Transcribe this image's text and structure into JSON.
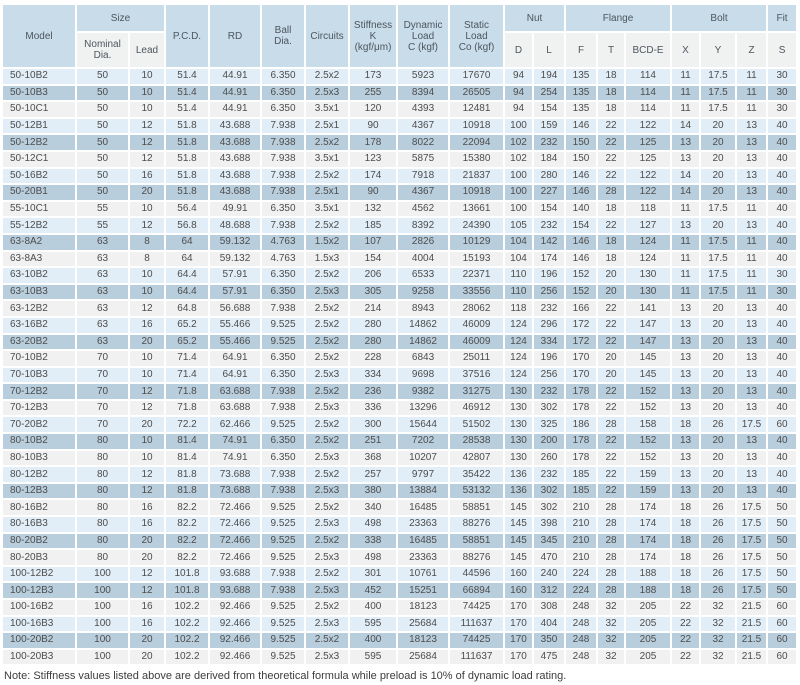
{
  "colors": {
    "header_bg": "#c8dce9",
    "subheader_bg": "#f0f1f1",
    "row_blue_light": "#e2eef7",
    "row_blue_medium": "#b9cedd",
    "row_gray": "#f1f1f1"
  },
  "table": {
    "header": {
      "model": "Model",
      "size": "Size",
      "nominal_dia": "Nominal\nDia.",
      "lead": "Lead",
      "pcd": "P.C.D.",
      "rd": "RD",
      "ball_dia": "Ball\nDia.",
      "circuits": "Circuits",
      "stiffness": "Stiffness\nK\n(kgf/μm)",
      "dynamic_load": "Dynamic\nLoad\nC (kgf)",
      "static_load": "Static\nLoad\nCo (kgf)",
      "nut": "Nut",
      "d": "D",
      "l": "L",
      "flange": "Flange",
      "f": "F",
      "t": "T",
      "bcde": "BCD-E",
      "bolt": "Bolt",
      "x": "X",
      "y": "Y",
      "z": "Z",
      "fit": "Fit",
      "s": "S"
    },
    "rows": [
      [
        "50-10B2",
        "50",
        "10",
        "51.4",
        "44.91",
        "6.350",
        "2.5x2",
        "173",
        "5923",
        "17670",
        "94",
        "194",
        "135",
        "18",
        "114",
        "11",
        "17.5",
        "11",
        "30"
      ],
      [
        "50-10B3",
        "50",
        "10",
        "51.4",
        "44.91",
        "6.350",
        "2.5x3",
        "255",
        "8394",
        "26505",
        "94",
        "254",
        "135",
        "18",
        "114",
        "11",
        "17.5",
        "11",
        "30"
      ],
      [
        "50-10C1",
        "50",
        "10",
        "51.4",
        "44.91",
        "6.350",
        "3.5x1",
        "120",
        "4393",
        "12481",
        "94",
        "154",
        "135",
        "18",
        "114",
        "11",
        "17.5",
        "11",
        "30"
      ],
      [
        "50-12B1",
        "50",
        "12",
        "51.8",
        "43.688",
        "7.938",
        "2.5x1",
        "90",
        "4367",
        "10918",
        "100",
        "159",
        "146",
        "22",
        "122",
        "14",
        "20",
        "13",
        "40"
      ],
      [
        "50-12B2",
        "50",
        "12",
        "51.8",
        "43.688",
        "7.938",
        "2.5x2",
        "178",
        "8022",
        "22094",
        "102",
        "232",
        "150",
        "22",
        "125",
        "13",
        "20",
        "13",
        "40"
      ],
      [
        "50-12C1",
        "50",
        "12",
        "51.8",
        "43.688",
        "7.938",
        "3.5x1",
        "123",
        "5875",
        "15380",
        "102",
        "184",
        "150",
        "22",
        "125",
        "13",
        "20",
        "13",
        "40"
      ],
      [
        "50-16B2",
        "50",
        "16",
        "51.8",
        "43.688",
        "7.938",
        "2.5x2",
        "174",
        "7918",
        "21837",
        "100",
        "280",
        "146",
        "22",
        "122",
        "14",
        "20",
        "13",
        "40"
      ],
      [
        "50-20B1",
        "50",
        "20",
        "51.8",
        "43.688",
        "7.938",
        "2.5x1",
        "90",
        "4367",
        "10918",
        "100",
        "227",
        "146",
        "28",
        "122",
        "14",
        "20",
        "13",
        "40"
      ],
      [
        "55-10C1",
        "55",
        "10",
        "56.4",
        "49.91",
        "6.350",
        "3.5x1",
        "132",
        "4562",
        "13661",
        "100",
        "154",
        "140",
        "18",
        "118",
        "11",
        "17.5",
        "11",
        "40"
      ],
      [
        "55-12B2",
        "55",
        "12",
        "56.8",
        "48.688",
        "7.938",
        "2.5x2",
        "185",
        "8392",
        "24390",
        "105",
        "232",
        "154",
        "22",
        "127",
        "13",
        "20",
        "13",
        "40"
      ],
      [
        "63-8A2",
        "63",
        "8",
        "64",
        "59.132",
        "4.763",
        "1.5x2",
        "107",
        "2826",
        "10129",
        "104",
        "142",
        "146",
        "18",
        "124",
        "11",
        "17.5",
        "11",
        "40"
      ],
      [
        "63-8A3",
        "63",
        "8",
        "64",
        "59.132",
        "4.763",
        "1.5x3",
        "154",
        "4004",
        "15193",
        "104",
        "174",
        "146",
        "18",
        "124",
        "11",
        "17.5",
        "11",
        "40"
      ],
      [
        "63-10B2",
        "63",
        "10",
        "64.4",
        "57.91",
        "6.350",
        "2.5x2",
        "206",
        "6533",
        "22371",
        "110",
        "196",
        "152",
        "20",
        "130",
        "11",
        "17.5",
        "11",
        "30"
      ],
      [
        "63-10B3",
        "63",
        "10",
        "64.4",
        "57.91",
        "6.350",
        "2.5x3",
        "305",
        "9258",
        "33556",
        "110",
        "256",
        "152",
        "20",
        "130",
        "11",
        "17.5",
        "11",
        "30"
      ],
      [
        "63-12B2",
        "63",
        "12",
        "64.8",
        "56.688",
        "7.938",
        "2.5x2",
        "214",
        "8943",
        "28062",
        "118",
        "232",
        "166",
        "22",
        "141",
        "13",
        "20",
        "13",
        "40"
      ],
      [
        "63-16B2",
        "63",
        "16",
        "65.2",
        "55.466",
        "9.525",
        "2.5x2",
        "280",
        "14862",
        "46009",
        "124",
        "296",
        "172",
        "22",
        "147",
        "13",
        "20",
        "13",
        "40"
      ],
      [
        "63-20B2",
        "63",
        "20",
        "65.2",
        "55.466",
        "9.525",
        "2.5x2",
        "280",
        "14862",
        "46009",
        "124",
        "334",
        "172",
        "22",
        "147",
        "13",
        "20",
        "13",
        "40"
      ],
      [
        "70-10B2",
        "70",
        "10",
        "71.4",
        "64.91",
        "6.350",
        "2.5x2",
        "228",
        "6843",
        "25011",
        "124",
        "196",
        "170",
        "20",
        "145",
        "13",
        "20",
        "13",
        "40"
      ],
      [
        "70-10B3",
        "70",
        "10",
        "71.4",
        "64.91",
        "6.350",
        "2.5x3",
        "334",
        "9698",
        "37516",
        "124",
        "256",
        "170",
        "20",
        "145",
        "13",
        "20",
        "13",
        "40"
      ],
      [
        "70-12B2",
        "70",
        "12",
        "71.8",
        "63.688",
        "7.938",
        "2.5x2",
        "236",
        "9382",
        "31275",
        "130",
        "232",
        "178",
        "22",
        "152",
        "13",
        "20",
        "13",
        "40"
      ],
      [
        "70-12B3",
        "70",
        "12",
        "71.8",
        "63.688",
        "7.938",
        "2.5x3",
        "336",
        "13296",
        "46912",
        "130",
        "302",
        "178",
        "22",
        "152",
        "13",
        "20",
        "13",
        "40"
      ],
      [
        "70-20B2",
        "70",
        "20",
        "72.2",
        "62.466",
        "9.525",
        "2.5x2",
        "300",
        "15644",
        "51502",
        "130",
        "325",
        "186",
        "28",
        "158",
        "18",
        "26",
        "17.5",
        "60"
      ],
      [
        "80-10B2",
        "80",
        "10",
        "81.4",
        "74.91",
        "6.350",
        "2.5x2",
        "251",
        "7202",
        "28538",
        "130",
        "200",
        "178",
        "22",
        "152",
        "13",
        "20",
        "13",
        "40"
      ],
      [
        "80-10B3",
        "80",
        "10",
        "81.4",
        "74.91",
        "6.350",
        "2.5x3",
        "368",
        "10207",
        "42807",
        "130",
        "260",
        "178",
        "22",
        "152",
        "13",
        "20",
        "13",
        "40"
      ],
      [
        "80-12B2",
        "80",
        "12",
        "81.8",
        "73.688",
        "7.938",
        "2.5x2",
        "257",
        "9797",
        "35422",
        "136",
        "232",
        "185",
        "22",
        "159",
        "13",
        "20",
        "13",
        "40"
      ],
      [
        "80-12B3",
        "80",
        "12",
        "81.8",
        "73.688",
        "7.938",
        "2.5x3",
        "380",
        "13884",
        "53132",
        "136",
        "302",
        "185",
        "22",
        "159",
        "13",
        "20",
        "13",
        "40"
      ],
      [
        "80-16B2",
        "80",
        "16",
        "82.2",
        "72.466",
        "9.525",
        "2.5x2",
        "340",
        "16485",
        "58851",
        "145",
        "302",
        "210",
        "28",
        "174",
        "18",
        "26",
        "17.5",
        "50"
      ],
      [
        "80-16B3",
        "80",
        "16",
        "82.2",
        "72.466",
        "9.525",
        "2.5x3",
        "498",
        "23363",
        "88276",
        "145",
        "398",
        "210",
        "28",
        "174",
        "18",
        "26",
        "17.5",
        "50"
      ],
      [
        "80-20B2",
        "80",
        "20",
        "82.2",
        "72.466",
        "9.525",
        "2.5x2",
        "338",
        "16485",
        "58851",
        "145",
        "345",
        "210",
        "28",
        "174",
        "18",
        "26",
        "17.5",
        "50"
      ],
      [
        "80-20B3",
        "80",
        "20",
        "82.2",
        "72.466",
        "9.525",
        "2.5x3",
        "498",
        "23363",
        "88276",
        "145",
        "470",
        "210",
        "28",
        "174",
        "18",
        "26",
        "17.5",
        "50"
      ],
      [
        "100-12B2",
        "100",
        "12",
        "101.8",
        "93.688",
        "7.938",
        "2.5x2",
        "301",
        "10761",
        "44596",
        "160",
        "240",
        "224",
        "28",
        "188",
        "18",
        "26",
        "17.5",
        "50"
      ],
      [
        "100-12B3",
        "100",
        "12",
        "101.8",
        "93.688",
        "7.938",
        "2.5x3",
        "452",
        "15251",
        "66894",
        "160",
        "312",
        "224",
        "28",
        "188",
        "18",
        "26",
        "17.5",
        "50"
      ],
      [
        "100-16B2",
        "100",
        "16",
        "102.2",
        "92.466",
        "9.525",
        "2.5x2",
        "400",
        "18123",
        "74425",
        "170",
        "308",
        "248",
        "32",
        "205",
        "22",
        "32",
        "21.5",
        "60"
      ],
      [
        "100-16B3",
        "100",
        "16",
        "102.2",
        "92.466",
        "9.525",
        "2.5x3",
        "595",
        "25684",
        "111637",
        "170",
        "404",
        "248",
        "32",
        "205",
        "22",
        "32",
        "21.5",
        "60"
      ],
      [
        "100-20B2",
        "100",
        "20",
        "102.2",
        "92.466",
        "9.525",
        "2.5x2",
        "400",
        "18123",
        "74425",
        "170",
        "350",
        "248",
        "32",
        "205",
        "22",
        "32",
        "21.5",
        "60"
      ],
      [
        "100-20B3",
        "100",
        "20",
        "102.2",
        "92.466",
        "9.525",
        "2.5x3",
        "595",
        "25684",
        "111637",
        "170",
        "475",
        "248",
        "32",
        "205",
        "22",
        "32",
        "21.5",
        "60"
      ]
    ]
  },
  "note": "Note: Stiffness values listed above are derived from theoretical formula while preload is 10% of dynamic load rating."
}
